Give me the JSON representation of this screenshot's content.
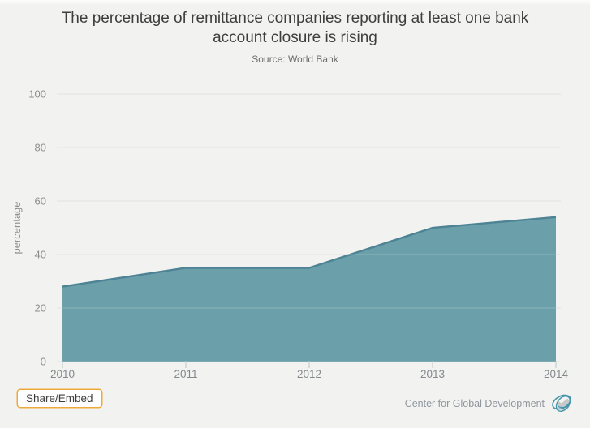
{
  "chart_data": {
    "type": "area",
    "title": "The percentage of remittance companies reporting at least one bank account closure is rising",
    "subtitle": "Source: World Bank",
    "x": [
      "2010",
      "2011",
      "2012",
      "2013",
      "2014"
    ],
    "values": [
      28,
      35,
      35,
      50,
      54
    ],
    "xlabel": "",
    "ylabel": "percentage",
    "ylim": [
      0,
      100
    ],
    "yticks": [
      0,
      20,
      40,
      60,
      80,
      100
    ],
    "grid": true,
    "legend": "none",
    "fill_color": "#6b9faa",
    "line_color": "#4d8394",
    "grid_color": "#d9d9d6",
    "axis_label_color": "#8e8e8e",
    "x_label_color": "#84898e",
    "tick_color": "#bcc6cd",
    "background_color": "#f2f2f0"
  },
  "footer": {
    "share_button_label": "Share/Embed",
    "share_accent_color": "#eda93c",
    "brand_name": "Center for Global Development",
    "brand_logo_icon": "globe-icon"
  }
}
